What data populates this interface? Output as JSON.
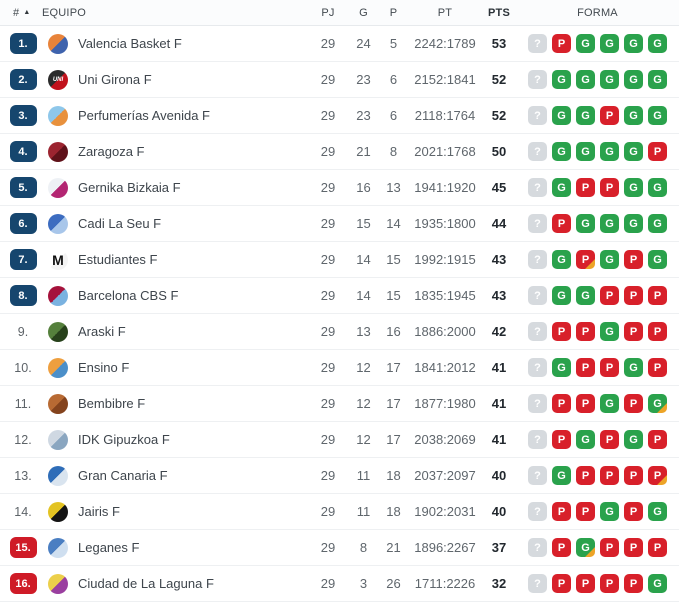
{
  "table": {
    "header": {
      "rank": "#",
      "sort_arrow": "▲",
      "equipo": "EQUIPO",
      "pj": "PJ",
      "g": "G",
      "p": "P",
      "pt": "PT",
      "pts": "PTS",
      "forma": "FORMA"
    },
    "colors": {
      "promotion_badge": "#16466e",
      "relegation_badge": "#cf1b27",
      "form_win": "#2aa24c",
      "form_loss": "#d8202a",
      "form_unknown": "#d6dade",
      "form_overtime_corner": "#eda427"
    },
    "rows": [
      {
        "rank": "1.",
        "rank_style": "blue",
        "team": "Valencia Basket F",
        "logo": {
          "c1": "#e8833a",
          "c2": "#3f63ad",
          "glyph": "",
          "gc": ""
        },
        "pj": "29",
        "g": "24",
        "p": "5",
        "pt": "2242:1789",
        "pts": "53",
        "forma": [
          "?",
          "P",
          "G",
          "G",
          "G",
          "G"
        ]
      },
      {
        "rank": "2.",
        "rank_style": "blue",
        "team": "Uni Girona F",
        "logo": {
          "c1": "#2b2b2b",
          "c2": "#c1121c",
          "glyph": "UNI",
          "gc": "#ffffff"
        },
        "pj": "29",
        "g": "23",
        "p": "6",
        "pt": "2152:1841",
        "pts": "52",
        "forma": [
          "?",
          "G",
          "G",
          "G",
          "G",
          "G"
        ]
      },
      {
        "rank": "3.",
        "rank_style": "blue",
        "team": "Perfumerías Avenida F",
        "logo": {
          "c1": "#8ec7ea",
          "c2": "#e8913d",
          "glyph": "",
          "gc": ""
        },
        "pj": "29",
        "g": "23",
        "p": "6",
        "pt": "2118:1764",
        "pts": "52",
        "forma": [
          "?",
          "G",
          "G",
          "P",
          "G",
          "G"
        ]
      },
      {
        "rank": "4.",
        "rank_style": "blue",
        "team": "Zaragoza F",
        "logo": {
          "c1": "#9c2430",
          "c2": "#5f1119",
          "glyph": "",
          "gc": ""
        },
        "pj": "29",
        "g": "21",
        "p": "8",
        "pt": "2021:1768",
        "pts": "50",
        "forma": [
          "?",
          "G",
          "G",
          "G",
          "G",
          "P"
        ]
      },
      {
        "rank": "5.",
        "rank_style": "blue",
        "team": "Gernika Bizkaia F",
        "logo": {
          "c1": "#eef1f5",
          "c2": "#b32572",
          "glyph": "",
          "gc": ""
        },
        "pj": "29",
        "g": "16",
        "p": "13",
        "pt": "1941:1920",
        "pts": "45",
        "forma": [
          "?",
          "G",
          "P",
          "P",
          "G",
          "G"
        ]
      },
      {
        "rank": "6.",
        "rank_style": "blue",
        "team": "Cadi La Seu F",
        "logo": {
          "c1": "#3c6cc0",
          "c2": "#a8c6ea",
          "glyph": "",
          "gc": ""
        },
        "pj": "29",
        "g": "15",
        "p": "14",
        "pt": "1935:1800",
        "pts": "44",
        "forma": [
          "?",
          "P",
          "G",
          "G",
          "G",
          "G"
        ]
      },
      {
        "rank": "7.",
        "rank_style": "blue",
        "team": "Estudiantes F",
        "logo": {
          "c1": "#ffffff",
          "c2": "#f4f4f4",
          "glyph": "M",
          "gc": "#111111",
          "big": true
        },
        "pj": "29",
        "g": "14",
        "p": "15",
        "pt": "1992:1915",
        "pts": "43",
        "forma": [
          "?",
          "G",
          "P*",
          "G",
          "P",
          "G"
        ]
      },
      {
        "rank": "8.",
        "rank_style": "blue",
        "team": "Barcelona CBS F",
        "logo": {
          "c1": "#a5123b",
          "c2": "#7ab2e0",
          "glyph": "",
          "gc": ""
        },
        "pj": "29",
        "g": "14",
        "p": "15",
        "pt": "1835:1945",
        "pts": "43",
        "forma": [
          "?",
          "G",
          "G",
          "P",
          "P",
          "P"
        ]
      },
      {
        "rank": "9.",
        "rank_style": "plain",
        "team": "Araski F",
        "logo": {
          "c1": "#55803c",
          "c2": "#27411b",
          "glyph": "",
          "gc": ""
        },
        "pj": "29",
        "g": "13",
        "p": "16",
        "pt": "1886:2000",
        "pts": "42",
        "forma": [
          "?",
          "P",
          "P",
          "G",
          "P",
          "P"
        ]
      },
      {
        "rank": "10.",
        "rank_style": "plain",
        "team": "Ensino F",
        "logo": {
          "c1": "#ee9f3f",
          "c2": "#4b8fc9",
          "glyph": "",
          "gc": ""
        },
        "pj": "29",
        "g": "12",
        "p": "17",
        "pt": "1841:2012",
        "pts": "41",
        "forma": [
          "?",
          "G",
          "P",
          "P",
          "G",
          "P"
        ]
      },
      {
        "rank": "11.",
        "rank_style": "plain",
        "team": "Bembibre F",
        "logo": {
          "c1": "#b86a33",
          "c2": "#84431d",
          "glyph": "",
          "gc": ""
        },
        "pj": "29",
        "g": "12",
        "p": "17",
        "pt": "1877:1980",
        "pts": "41",
        "forma": [
          "?",
          "P",
          "P",
          "G",
          "P",
          "G*"
        ]
      },
      {
        "rank": "12.",
        "rank_style": "plain",
        "team": "IDK Gipuzkoa F",
        "logo": {
          "c1": "#cfd8e2",
          "c2": "#8aa6c0",
          "glyph": "",
          "gc": ""
        },
        "pj": "29",
        "g": "12",
        "p": "17",
        "pt": "2038:2069",
        "pts": "41",
        "forma": [
          "?",
          "P",
          "G",
          "P",
          "G",
          "P"
        ]
      },
      {
        "rank": "13.",
        "rank_style": "plain",
        "team": "Gran Canaria F",
        "logo": {
          "c1": "#2f6db8",
          "c2": "#d9e4ef",
          "glyph": "",
          "gc": ""
        },
        "pj": "29",
        "g": "11",
        "p": "18",
        "pt": "2037:2097",
        "pts": "40",
        "forma": [
          "?",
          "G",
          "P",
          "P",
          "P",
          "P*"
        ]
      },
      {
        "rank": "14.",
        "rank_style": "plain",
        "team": "Jairis F",
        "logo": {
          "c1": "#e3c322",
          "c2": "#141414",
          "glyph": "",
          "gc": ""
        },
        "pj": "29",
        "g": "11",
        "p": "18",
        "pt": "1902:2031",
        "pts": "40",
        "forma": [
          "?",
          "P",
          "P",
          "G",
          "P",
          "G"
        ]
      },
      {
        "rank": "15.",
        "rank_style": "red",
        "team": "Leganes F",
        "logo": {
          "c1": "#4a7ec2",
          "c2": "#cfdff0",
          "glyph": "",
          "gc": ""
        },
        "pj": "29",
        "g": "8",
        "p": "21",
        "pt": "1896:2267",
        "pts": "37",
        "forma": [
          "?",
          "P",
          "G*",
          "P",
          "P",
          "P"
        ]
      },
      {
        "rank": "16.",
        "rank_style": "red",
        "team": "Ciudad de La Laguna F",
        "logo": {
          "c1": "#eccf4a",
          "c2": "#9a3f9f",
          "glyph": "",
          "gc": ""
        },
        "pj": "29",
        "g": "3",
        "p": "26",
        "pt": "1711:2226",
        "pts": "32",
        "forma": [
          "?",
          "P",
          "P",
          "P",
          "P",
          "G"
        ]
      }
    ]
  }
}
